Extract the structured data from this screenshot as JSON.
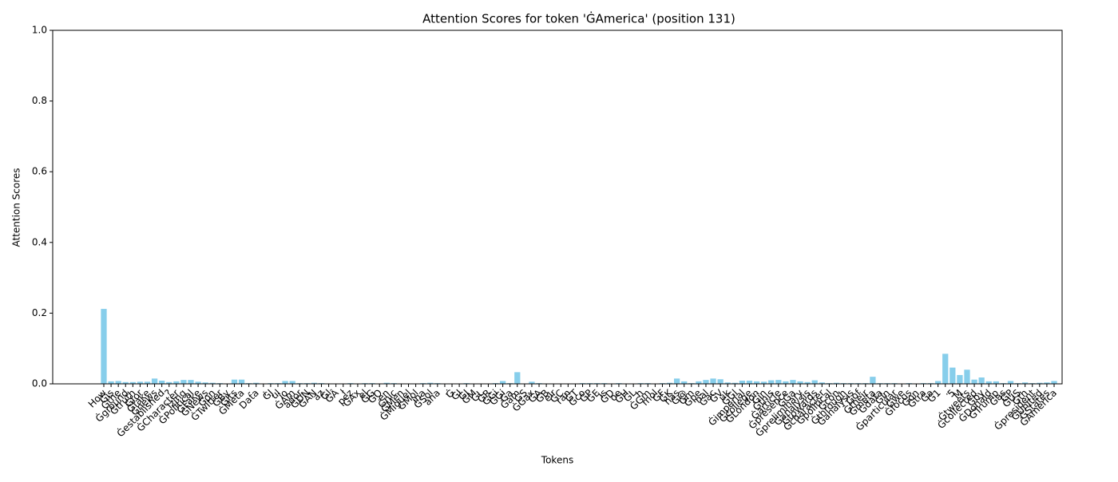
{
  "chart_data": {
    "type": "bar",
    "title": "Attention Scores for token 'ĠAmerica' (position 131)",
    "x_label": "Tokens",
    "y_label": "Attention Scores",
    "categories": [
      "How",
      "Ġis",
      "Ġthe",
      "Ġground",
      "Ġtruth",
      "Ġfor",
      "Ġfake",
      "Ġnews",
      "Ġestablished",
      "?",
      "ĠCharacter",
      "izing",
      "ĠPolitical",
      "ĠFake",
      "ĠNews",
      "Ġon",
      "ĠTwitter",
      "ĠBy",
      "ĠIts",
      "ĠMeta",
      "-",
      "Data",
      ",",
      "ĠJ",
      "ul",
      "io",
      "ĠAm",
      "ador",
      "ĠDN",
      "ĠAN",
      "az",
      "Ġl",
      "ĠÂ",
      "ł",
      "pez",
      "ĠAx",
      "el",
      "ĠG",
      "ĠO",
      "en",
      "Ġnic",
      "ĠMen",
      "ĠMiguel",
      "ĠMol",
      "ina",
      "ĠSol",
      "ana",
      ".",
      "Ġ",
      "ĠI",
      "ĠJ",
      "ĠM",
      "ĠL",
      "ĠR",
      "ĠGi",
      "ĠGi",
      "Ġa",
      "Ġam",
      "ĠS",
      "ĠGax",
      "ĠA",
      "ĠB",
      "elr",
      "ĠC",
      "ran",
      "ĠT",
      "Ġco",
      "ĠP",
      "ĠE",
      "is",
      "ĠD",
      "oe",
      "ĠH",
      "ĠL",
      "h",
      "ĠGm",
      "mol",
      "ĠF",
      "ĠK",
      "has",
      "Ġ@",
      "Ġm",
      "Ġpe",
      "nal",
      "Ġac",
      "ĠV",
      "uk",
      "ĠGl",
      "Ġimperial",
      "Ġcollege",
      "ĠLondon",
      "Ġin",
      "Ġthis",
      "Ġarticle",
      "Ġpresence",
      "ĠGa",
      "Ġpreliminary",
      "Ġanalysis",
      "Ġtowards",
      "Ġcharacter",
      "Ġpolitical",
      "Ġcon",
      "Ġthrough",
      "Ġanalysis",
      "Ġof",
      "Ġtheir",
      "Ġmeta",
      "Ġdata",
      "Ġin",
      "Ġparticular",
      "Ġwe",
      "Ġfocus",
      "Ġon",
      "Ġtra",
      "Ġa",
      "Ġ1",
      ".",
      "5",
      "M",
      "Ġtweets",
      "Ġcollected",
      "Ġby",
      "ĠDonald",
      "ĠTrump",
      "Ġas",
      "ĠP",
      "ĠUS",
      "Ġth",
      "Ġpresident",
      "ĠUnited",
      "ĠStates",
      "ĠAmerica"
    ],
    "values": [
      0.212,
      0.007,
      0.008,
      0.005,
      0.005,
      0.006,
      0.006,
      0.015,
      0.009,
      0.005,
      0.007,
      0.011,
      0.011,
      0.006,
      0.004,
      0.003,
      0.002,
      0.001,
      0.012,
      0.012,
      0.002,
      0.003,
      0.001,
      0.002,
      0.002,
      0.008,
      0.008,
      0.002,
      0.002,
      0.003,
      0.002,
      0.001,
      0.001,
      0.001,
      0.002,
      0.001,
      0.002,
      0.002,
      0.001,
      0.003,
      0.002,
      0.001,
      0.001,
      0.001,
      0.002,
      0.003,
      0.002,
      0.001,
      0.001,
      0.001,
      0.002,
      0.001,
      0.001,
      0.001,
      0.002,
      0.008,
      0.002,
      0.033,
      0.001,
      0.006,
      0.002,
      0.001,
      0.001,
      0.001,
      0.001,
      0.001,
      0.002,
      0.002,
      0.002,
      0.002,
      0.001,
      0.002,
      0.001,
      0.001,
      0.002,
      0.002,
      0.001,
      0.002,
      0.003,
      0.015,
      0.007,
      0.002,
      0.007,
      0.011,
      0.015,
      0.013,
      0.004,
      0.003,
      0.009,
      0.009,
      0.007,
      0.006,
      0.01,
      0.011,
      0.007,
      0.011,
      0.007,
      0.005,
      0.01,
      0.004,
      0.002,
      0.003,
      0.002,
      0.002,
      0.002,
      0.002,
      0.02,
      0.002,
      0.002,
      0.002,
      0.001,
      0.002,
      0.001,
      0.002,
      0.002,
      0.008,
      0.085,
      0.046,
      0.025,
      0.04,
      0.012,
      0.018,
      0.007,
      0.007,
      0.002,
      0.008,
      0.002,
      0.004,
      0.002,
      0.003,
      0.004,
      0.008
    ],
    "color": "#87ceeb",
    "ylim": [
      0,
      1
    ],
    "yticks": [
      {
        "value": 0,
        "label": "0.0"
      },
      {
        "value": 0.2,
        "label": "0.2"
      },
      {
        "value": 0.4,
        "label": "0.4"
      },
      {
        "value": 0.6,
        "label": "0.6"
      },
      {
        "value": 0.8,
        "label": "0.8"
      },
      {
        "value": 1,
        "label": "1.0"
      }
    ],
    "grid": false
  }
}
